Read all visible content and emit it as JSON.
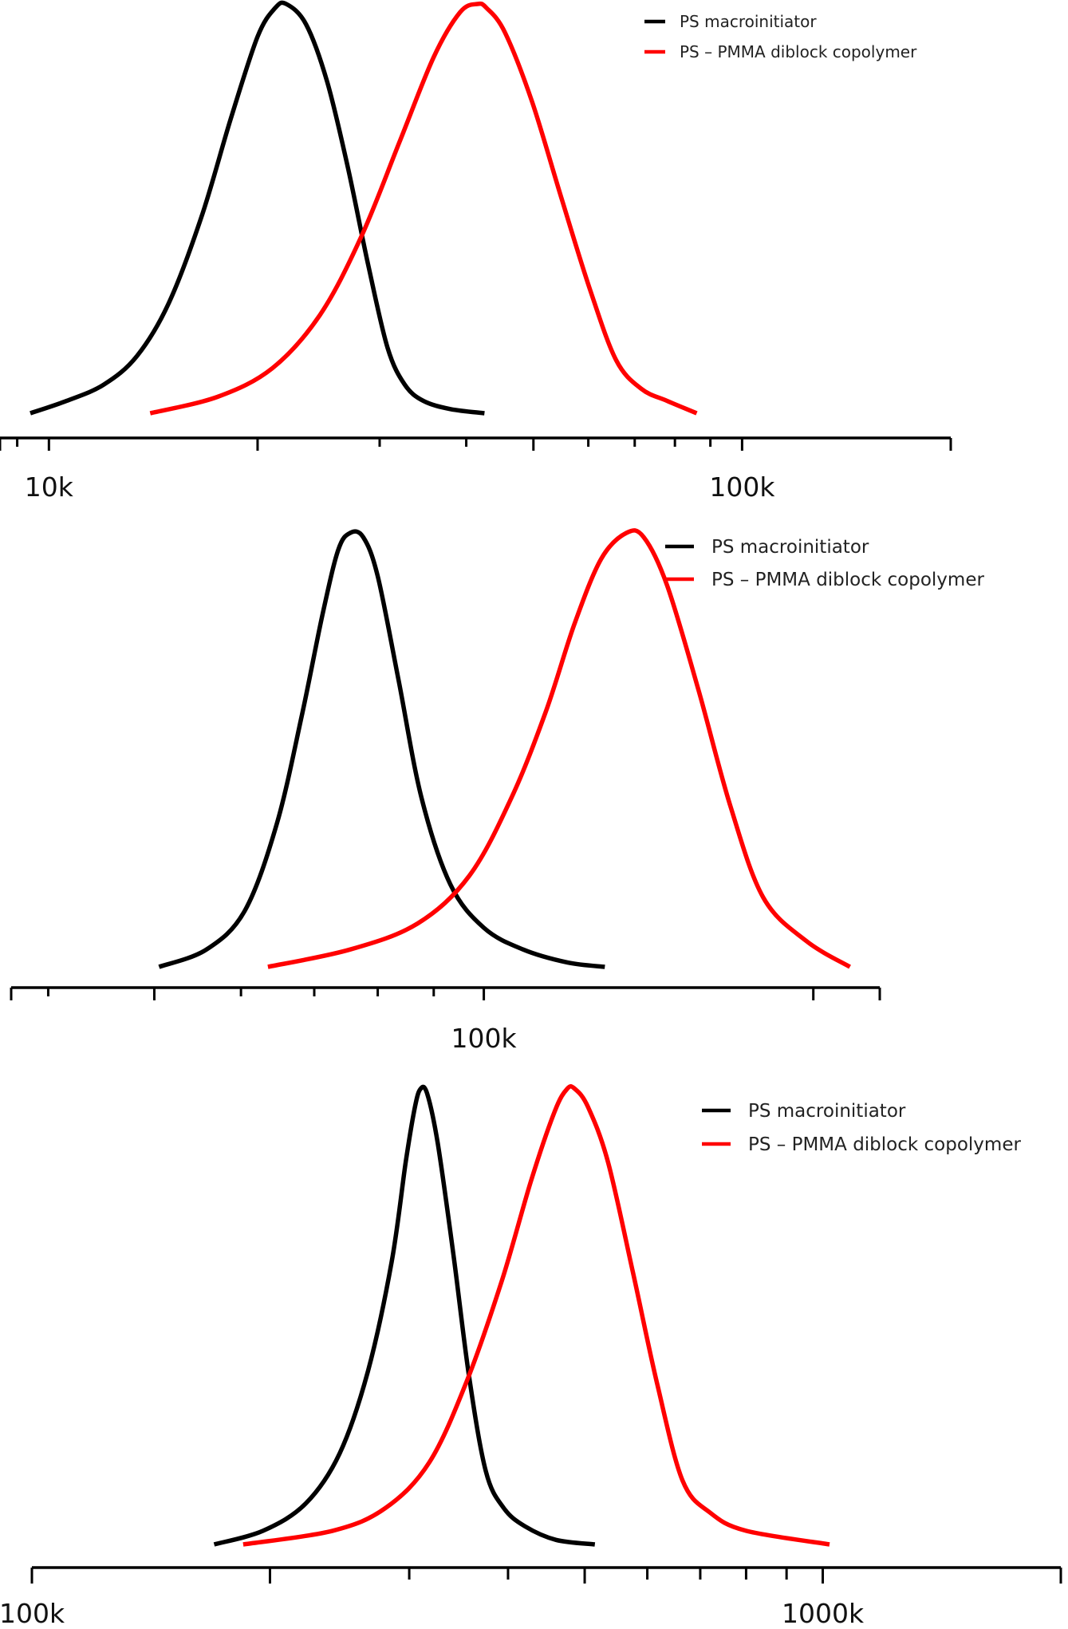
{
  "chart_data": [
    {
      "type": "line",
      "title": "",
      "xlabel": "",
      "ylabel": "",
      "x_scale": "log",
      "xlim": [
        8500,
        200000
      ],
      "ylim": [
        0,
        1
      ],
      "grid": false,
      "legend": "top-right",
      "tick_labels": [
        {
          "value": 10000,
          "text": "10k"
        },
        {
          "value": 100000,
          "text": "100k"
        }
      ],
      "series": [
        {
          "name": "PS macroinitiator",
          "color": "#000000",
          "x": [
            9400,
            10600,
            12000,
            13400,
            14900,
            16600,
            18300,
            20000,
            21200,
            22000,
            23500,
            25200,
            27000,
            28900,
            30800,
            32600,
            34700,
            38000,
            42500
          ],
          "y": [
            0.0,
            0.03,
            0.07,
            0.14,
            0.27,
            0.48,
            0.72,
            0.92,
            0.99,
            1.0,
            0.95,
            0.81,
            0.6,
            0.36,
            0.16,
            0.07,
            0.03,
            0.01,
            0.0
          ]
        },
        {
          "name": "PS – PMMA diblock copolymer",
          "color": "#ff0000",
          "x": [
            14000,
            17500,
            21000,
            24600,
            28200,
            32000,
            35900,
            39200,
            41500,
            42800,
            45500,
            49800,
            55000,
            60400,
            65800,
            71500,
            78000,
            86000
          ],
          "y": [
            0.0,
            0.04,
            0.11,
            0.24,
            0.43,
            0.66,
            0.87,
            0.98,
            1.0,
            0.99,
            0.93,
            0.76,
            0.52,
            0.3,
            0.13,
            0.06,
            0.03,
            0.0
          ]
        }
      ]
    },
    {
      "type": "line",
      "title": "",
      "xlabel": "",
      "ylabel": "",
      "x_scale": "log",
      "xlim": [
        37000,
        230000
      ],
      "ylim": [
        0,
        1
      ],
      "grid": false,
      "legend": "top-right",
      "tick_labels": [
        {
          "value": 100000,
          "text": "100k"
        }
      ],
      "series": [
        {
          "name": "PS macroinitiator",
          "color": "#000000",
          "x": [
            50500,
            55800,
            60500,
            64700,
            68200,
            71200,
            73600,
            75500,
            77600,
            80000,
            83600,
            87700,
            93200,
            100000,
            108600,
            119300,
            129000
          ],
          "y": [
            0.0,
            0.04,
            0.13,
            0.33,
            0.58,
            0.81,
            0.96,
            1.0,
            0.99,
            0.9,
            0.66,
            0.39,
            0.19,
            0.09,
            0.04,
            0.01,
            0.0
          ]
        },
        {
          "name": "PS – PMMA diblock copolymer",
          "color": "#ff0000",
          "x": [
            63500,
            75500,
            87000,
            97000,
            106000,
            114000,
            121000,
            128000,
            135000,
            140000,
            147000,
            157000,
            168000,
            180000,
            197000,
            216000
          ],
          "y": [
            0.0,
            0.04,
            0.1,
            0.21,
            0.39,
            0.59,
            0.79,
            0.94,
            1.0,
            0.99,
            0.88,
            0.64,
            0.37,
            0.16,
            0.06,
            0.0
          ]
        }
      ]
    },
    {
      "type": "line",
      "title": "",
      "xlabel": "",
      "ylabel": "",
      "x_scale": "log",
      "xlim": [
        100000,
        2000000
      ],
      "ylim": [
        0,
        1
      ],
      "grid": false,
      "legend": "top-right",
      "tick_labels": [
        {
          "value": 100000,
          "text": "100k"
        },
        {
          "value": 1000000,
          "text": "1000k"
        }
      ],
      "series": [
        {
          "name": "PS macroinitiator",
          "color": "#000000",
          "x": [
            170000,
            196000,
            222000,
            245000,
            266000,
            285000,
            297000,
            305000,
            310000,
            316000,
            326000,
            341000,
            357000,
            375000,
            395000,
            420000,
            460000,
            515000
          ],
          "y": [
            0.0,
            0.03,
            0.09,
            0.2,
            0.38,
            0.62,
            0.84,
            0.96,
            1.0,
            0.99,
            0.88,
            0.64,
            0.37,
            0.16,
            0.08,
            0.04,
            0.01,
            0.0
          ]
        },
        {
          "name": "PS – PMMA diblock copolymer",
          "color": "#ff0000",
          "x": [
            185000,
            240000,
            280000,
            318000,
            355000,
            393000,
            428000,
            458000,
            475000,
            486000,
            505000,
            535000,
            575000,
            618000,
            665000,
            720000,
            800000,
            1020000
          ],
          "y": [
            0.0,
            0.03,
            0.08,
            0.18,
            0.36,
            0.58,
            0.8,
            0.95,
            1.0,
            1.0,
            0.96,
            0.84,
            0.6,
            0.35,
            0.14,
            0.07,
            0.03,
            0.0
          ]
        }
      ]
    }
  ]
}
